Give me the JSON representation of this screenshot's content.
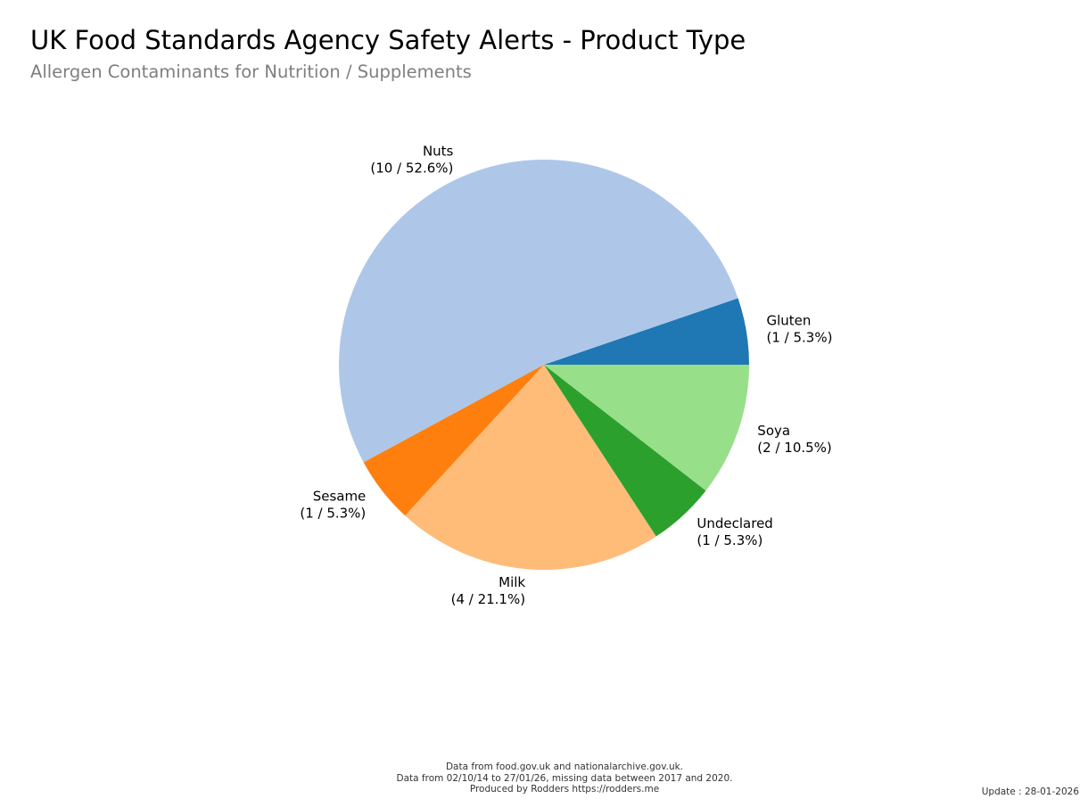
{
  "header": {
    "title": "UK Food Standards Agency Safety Alerts - Product Type",
    "subtitle": "Allergen Contaminants for Nutrition / Supplements"
  },
  "chart_data": {
    "type": "pie",
    "title": "UK Food Standards Agency Safety Alerts - Product Type",
    "subtitle": "Allergen Contaminants for Nutrition / Supplements",
    "start_angle_deg": 0,
    "direction": "counterclockwise",
    "slices": [
      {
        "label": "Gluten",
        "value": 1,
        "percent": "5.3%",
        "color": "#1f77b4",
        "text": "(1 / 5.3%)"
      },
      {
        "label": "Nuts",
        "value": 10,
        "percent": "52.6%",
        "color": "#aec7e8",
        "text": "(10 / 52.6%)"
      },
      {
        "label": "Sesame",
        "value": 1,
        "percent": "5.3%",
        "color": "#ff7f0e",
        "text": "(1 / 5.3%)"
      },
      {
        "label": "Milk",
        "value": 4,
        "percent": "21.1%",
        "color": "#ffbb78",
        "text": "(4 / 21.1%)"
      },
      {
        "label": "Undeclared",
        "value": 1,
        "percent": "5.3%",
        "color": "#2ca02c",
        "text": "(1 / 5.3%)"
      },
      {
        "label": "Soya",
        "value": 2,
        "percent": "10.5%",
        "color": "#98df8a",
        "text": "(2 / 10.5%)"
      }
    ]
  },
  "footer": {
    "line1": "Data from food.gov.uk and nationalarchive.gov.uk.",
    "line2": "Data from 02/10/14 to 27/01/26, missing data between 2017 and 2020.",
    "line3": "Produced by Rodders https://rodders.me",
    "update": "Update : 28-01-2026"
  }
}
